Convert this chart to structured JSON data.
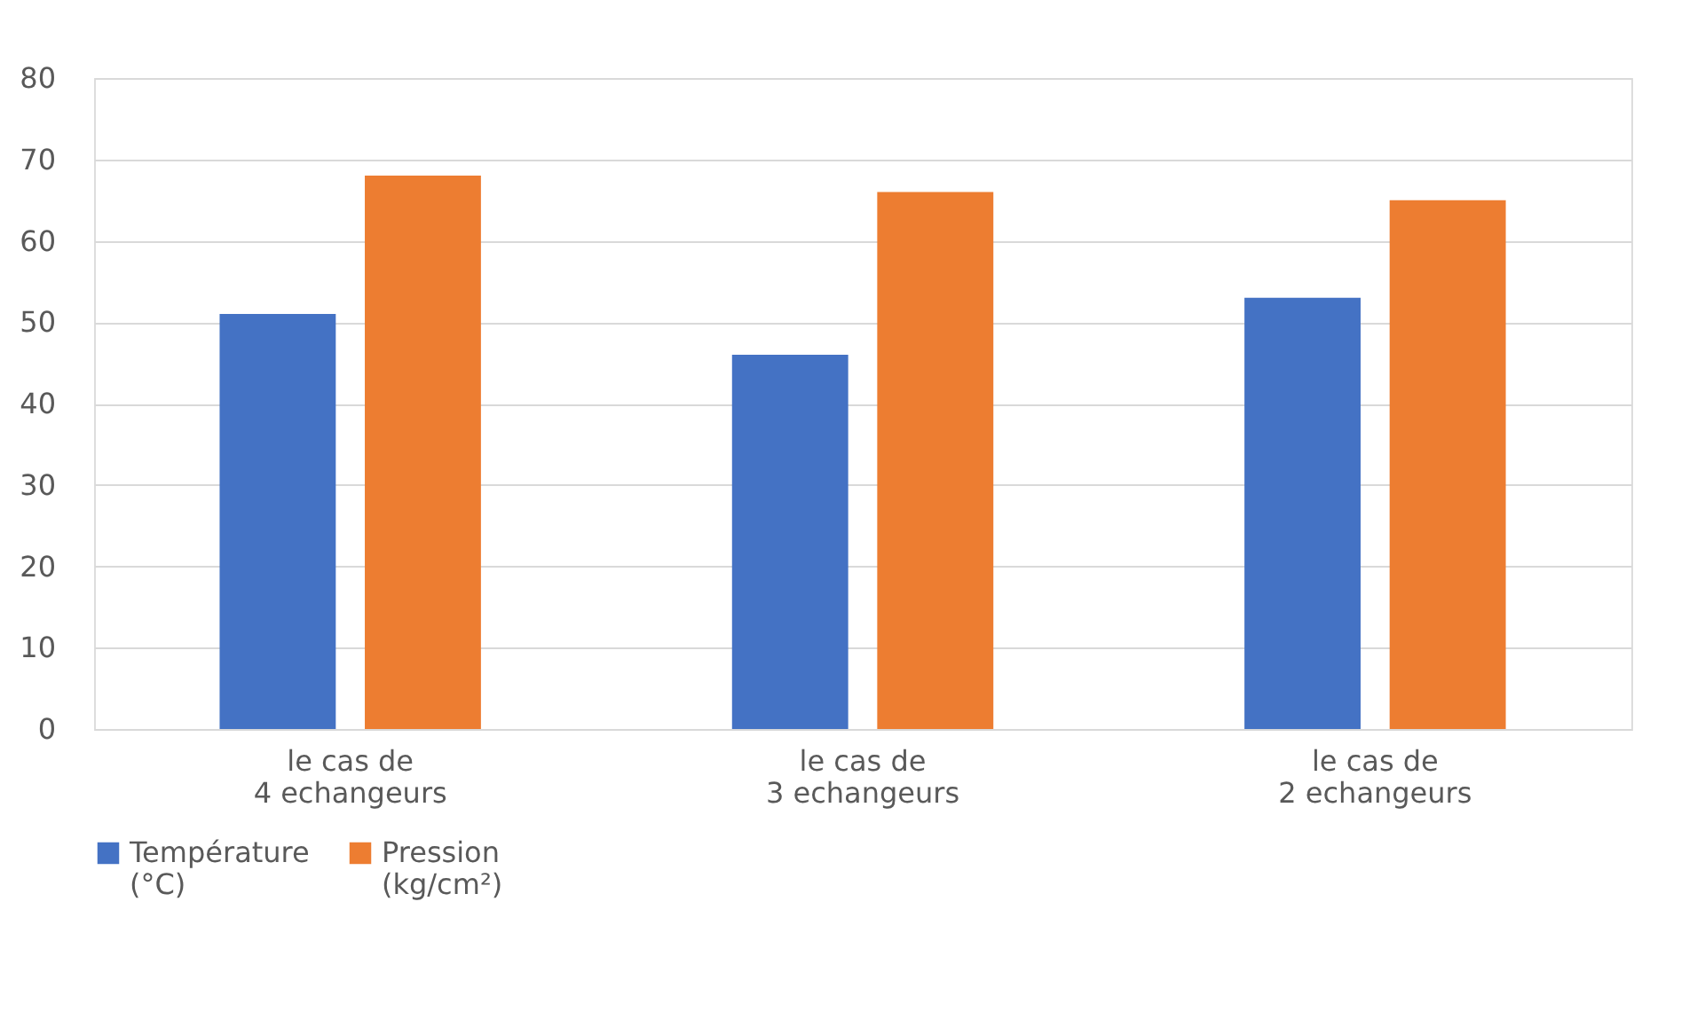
{
  "chart_data": {
    "type": "bar",
    "categories": [
      "le cas de 4 echangeurs",
      "le cas de 3 echangeurs",
      "le cas de 2 echangeurs"
    ],
    "series": [
      {
        "name": "Température (°C)",
        "color": "#4472c4",
        "values": [
          51,
          46,
          53
        ]
      },
      {
        "name": "Pression (kg/cm²)",
        "color": "#ed7d31",
        "values": [
          68,
          66,
          65
        ]
      }
    ],
    "ylim": [
      0,
      80
    ],
    "yticks": [
      0,
      10,
      20,
      30,
      40,
      50,
      60,
      70,
      80
    ],
    "grid": "y",
    "legend": "bottom"
  }
}
